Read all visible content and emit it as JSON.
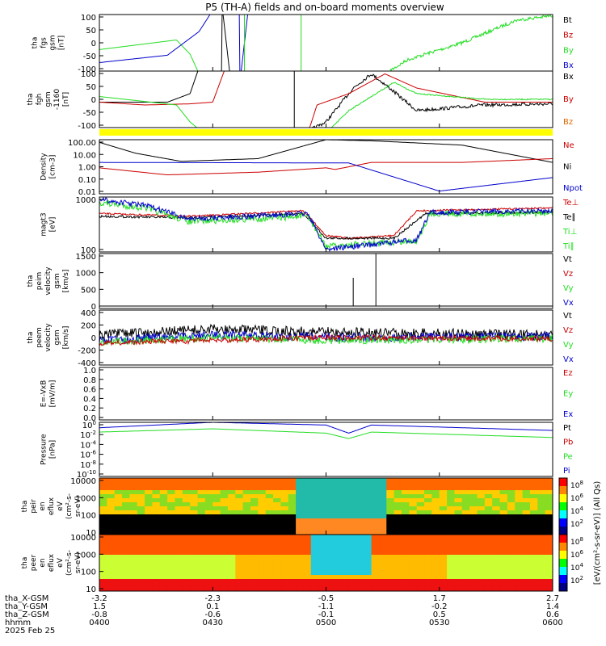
{
  "title": "P5 (TH-A) fields and on-board moments overview",
  "colors": {
    "black": "#000000",
    "red": "#cc0000",
    "green": "#22dd22",
    "blue": "#0000cc",
    "yellow": "#ffff00",
    "orange": "#dd6600"
  },
  "x_axis": {
    "times": [
      "0400",
      "0430",
      "0500",
      "0530",
      "0600"
    ],
    "time_unit_label": "hhmm",
    "date_label": "2025 Feb 25",
    "ephem": [
      {
        "label": "tha_X-GSM",
        "values": [
          "-3.2",
          "-2.3",
          "-0.5",
          "1.7",
          "2.7"
        ]
      },
      {
        "label": "tha_Y-GSM",
        "values": [
          "1.5",
          "0.1",
          "-1.1",
          "-0.2",
          "1.4"
        ]
      },
      {
        "label": "tha_Z-GSM",
        "values": [
          "-0.8",
          "-0.6",
          "-0.1",
          "0.5",
          "0.6"
        ]
      }
    ]
  },
  "panels": [
    {
      "id": "fgs",
      "ylabel": [
        "tha",
        "fgs",
        "gsm",
        "[nT]"
      ],
      "ticks": [
        "100",
        "50",
        "0",
        "-50",
        "-100"
      ],
      "legend": [
        {
          "t": "Bt",
          "c": "black"
        },
        {
          "t": "Bz",
          "c": "red"
        },
        {
          "t": "By",
          "c": "green"
        },
        {
          "t": "Bx",
          "c": "blue"
        }
      ]
    },
    {
      "id": "fgh",
      "ylabel": [
        "tha",
        "fgh",
        "gsm",
        "-1160",
        "[nT]"
      ],
      "ticks": [
        "100",
        "50",
        "0",
        "-50",
        "-100"
      ],
      "legend": [
        {
          "t": "Bx",
          "c": "black"
        },
        {
          "t": "By",
          "c": "red"
        },
        {
          "t": "Bz",
          "c": "orange"
        }
      ]
    },
    {
      "id": "density",
      "ylabel": [
        "Density",
        "[cm-3]"
      ],
      "ticks": [
        "100.00",
        "10.00",
        "1.00",
        "0.10",
        "0.01"
      ],
      "legend": [
        {
          "t": "Ne",
          "c": "red"
        },
        {
          "t": "Ni",
          "c": "black"
        },
        {
          "t": "Npot",
          "c": "blue"
        }
      ]
    },
    {
      "id": "temp",
      "ylabel": [
        "magt3",
        "[eV]"
      ],
      "ticks": [
        "1000",
        "100"
      ],
      "legend": [
        {
          "t": "Te⊥",
          "c": "red"
        },
        {
          "t": "Te∥",
          "c": "black"
        },
        {
          "t": "Ti⊥",
          "c": "green"
        },
        {
          "t": "Ti∥",
          "c": "green"
        }
      ]
    },
    {
      "id": "peim",
      "ylabel": [
        "tha",
        "peim",
        "velocity",
        "gsm",
        "[km/s]"
      ],
      "ticks": [
        "1500",
        "1000",
        "500",
        "0"
      ],
      "legend": [
        {
          "t": "Vt",
          "c": "black"
        },
        {
          "t": "Vz",
          "c": "red"
        },
        {
          "t": "Vy",
          "c": "green"
        },
        {
          "t": "Vx",
          "c": "blue"
        }
      ]
    },
    {
      "id": "peem",
      "ylabel": [
        "tha",
        "peem",
        "velocity",
        "gsm",
        "[km/s]"
      ],
      "ticks": [
        "400",
        "200",
        "0",
        "-200",
        "-400"
      ],
      "legend": [
        {
          "t": "Vt",
          "c": "black"
        },
        {
          "t": "Vz",
          "c": "red"
        },
        {
          "t": "Vy",
          "c": "green"
        },
        {
          "t": "Vx",
          "c": "blue"
        }
      ]
    },
    {
      "id": "efield",
      "ylabel": [
        "E=-VxB",
        "[mV/m]"
      ],
      "ticks": [
        "1.0",
        "0.8",
        "0.6",
        "0.4",
        "0.2",
        "0.0"
      ],
      "legend": [
        {
          "t": "Ez",
          "c": "red"
        },
        {
          "t": "Ey",
          "c": "green"
        },
        {
          "t": "Ex",
          "c": "blue"
        }
      ]
    },
    {
      "id": "pressure",
      "ylabel": [
        "Pressure",
        "[nPa]"
      ],
      "ticks": [
        "10^0",
        "10^-2",
        "10^-4",
        "10^-6",
        "10^-8",
        "10^-10"
      ],
      "legend": [
        {
          "t": "Pt",
          "c": "black"
        },
        {
          "t": "Pb",
          "c": "red"
        },
        {
          "t": "Pe",
          "c": "green"
        },
        {
          "t": "Pi",
          "c": "blue"
        }
      ]
    },
    {
      "id": "peir",
      "ylabel": [
        "tha",
        "peir",
        "en",
        "eflux",
        "eV",
        "(cm²-s-",
        "sr-eV)"
      ],
      "ticks": [
        "10000",
        "1000",
        "100",
        "10"
      ]
    },
    {
      "id": "peer",
      "ylabel": [
        "tha",
        "peer",
        "en",
        "eflux",
        "eV",
        "(cm²-s-",
        "sr-eV)"
      ],
      "ticks": [
        "10000",
        "1000",
        "100",
        "10"
      ]
    }
  ],
  "colorbar": {
    "label": "[eV/(cm²-s-sr-eV)] (All Qs)",
    "peir_ticks": [
      "10^8",
      "10^6",
      "10^4",
      "10^2"
    ],
    "peer_ticks": [
      "10^8",
      "10^6",
      "10^4",
      "10^2"
    ]
  },
  "chart_data": {
    "type": "line",
    "title": "P5 (TH-A) fields and on-board moments overview",
    "x": [
      "0400",
      "0430",
      "0500",
      "0530",
      "0600"
    ],
    "series": [
      {
        "name": "Bt",
        "panel": "fgs",
        "values": [
          100,
          40,
          400,
          60,
          100
        ]
      },
      {
        "name": "By",
        "panel": "fgs",
        "values": [
          -30,
          -10,
          -100,
          -60,
          100
        ]
      },
      {
        "name": "Bx",
        "panel": "fgs",
        "values": [
          -65,
          100,
          0,
          -100,
          -100
        ]
      },
      {
        "name": "Ni",
        "panel": "density",
        "values": [
          20,
          0.8,
          100,
          40,
          3
        ]
      },
      {
        "name": "Ne",
        "panel": "density",
        "values": [
          0.25,
          0.15,
          0.2,
          0.6,
          1.0
        ]
      },
      {
        "name": "Npot",
        "panel": "density",
        "values": [
          1.5,
          1.5,
          1.2,
          0.02,
          0.1
        ]
      },
      {
        "name": "Te⊥",
        "panel": "temp",
        "values": [
          1500,
          1100,
          80,
          1500,
          1500
        ]
      },
      {
        "name": "Ti∥",
        "panel": "temp",
        "values": [
          1200,
          500,
          55,
          1000,
          1000
        ]
      },
      {
        "name": "Pt",
        "panel": "pressure",
        "values": [
          0.1,
          0.5,
          0.3,
          0.2,
          0.05
        ]
      },
      {
        "name": "Pe",
        "panel": "pressure",
        "values": [
          0.05,
          0.2,
          0.001,
          0.1,
          0.02
        ]
      }
    ]
  }
}
